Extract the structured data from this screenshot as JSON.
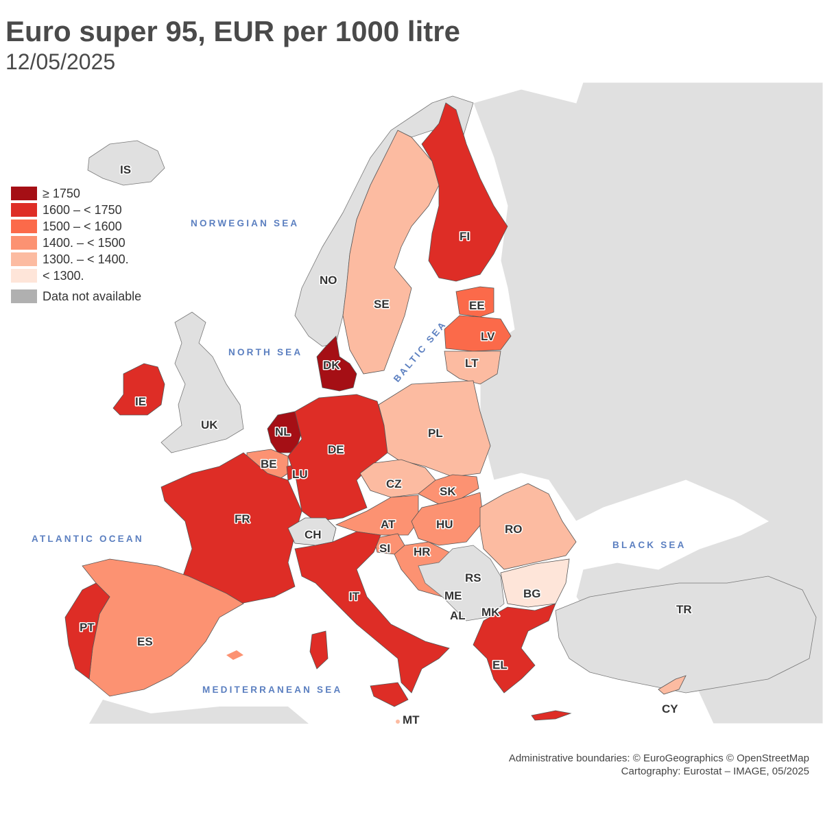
{
  "title": "Euro super 95, EUR per 1000 litre",
  "subtitle": "12/05/2025",
  "legend": {
    "classes": [
      {
        "label": "≥ 1750",
        "color": "#a50f15"
      },
      {
        "label": "1600 – < 1750",
        "color": "#de2d26"
      },
      {
        "label": "1500 – < 1600",
        "color": "#fb6a4a"
      },
      {
        "label": "1400. – < 1500",
        "color": "#fc9272"
      },
      {
        "label": "1300. – < 1400.",
        "color": "#fcbba1"
      },
      {
        "label": "< 1300.",
        "color": "#fee5d9"
      }
    ],
    "na": {
      "label": "Data not available",
      "color": "#b0b0b0"
    }
  },
  "seas": {
    "norwegian": "NORWEGIAN SEA",
    "north": "NORTH SEA",
    "baltic": "BALTIC SEA",
    "atlantic": "ATLANTIC OCEAN",
    "black": "BLACK SEA",
    "mediterranean": "MEDITERRANEAN SEA"
  },
  "countries": {
    "IS": "IS",
    "NO": "NO",
    "SE": "SE",
    "FI": "FI",
    "EE": "EE",
    "LV": "LV",
    "LT": "LT",
    "DK": "DK",
    "IE": "IE",
    "UK": "UK",
    "NL": "NL",
    "BE": "BE",
    "LU": "LU",
    "DE": "DE",
    "PL": "PL",
    "CZ": "CZ",
    "SK": "SK",
    "AT": "AT",
    "HU": "HU",
    "RO": "RO",
    "FR": "FR",
    "CH": "CH",
    "SI": "SI",
    "HR": "HR",
    "RS": "RS",
    "ME": "ME",
    "AL": "AL",
    "MK": "MK",
    "BG": "BG",
    "IT": "IT",
    "PT": "PT",
    "ES": "ES",
    "EL": "EL",
    "TR": "TR",
    "CY": "CY",
    "MT": "MT"
  },
  "classification": {
    "ge1750": [
      "DK",
      "NL"
    ],
    "c1600_1750": [
      "FI",
      "DE",
      "FR",
      "IT",
      "PT",
      "IE",
      "EL",
      "LU"
    ],
    "c1500_1600": [
      "EE",
      "LV"
    ],
    "c1400_1500": [
      "ES",
      "BE",
      "AT",
      "HU",
      "SK",
      "SI",
      "HR"
    ],
    "c1300_1400": [
      "SE",
      "LT",
      "PL",
      "CZ",
      "RO",
      "CY",
      "MT"
    ],
    "lt1300": [
      "BG"
    ]
  },
  "credits": {
    "line1": "Administrative boundaries: © EuroGeographics © OpenStreetMap",
    "line2": "Cartography: Eurostat – IMAGE, 05/2025"
  }
}
